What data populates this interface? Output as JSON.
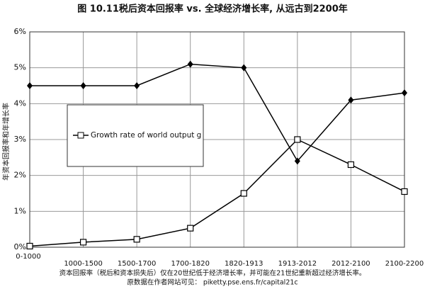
{
  "chart_data": {
    "type": "line",
    "title": "图 10.11税后资本回报率 vs. 全球经济增长率, 从远古到2200年",
    "y_label": "年资本回报率和年增长率",
    "categories": [
      "0-1000",
      "1000-1500",
      "1500-1700",
      "1700-1820",
      "1820-1913",
      "1913-2012",
      "2012-2100",
      "2100-2200"
    ],
    "series": [
      {
        "color": "#000000",
        "marker": "diamond",
        "values": [
          4.5,
          4.5,
          4.5,
          5.1,
          5.0,
          2.4,
          4.1,
          4.3
        ]
      },
      {
        "name": "Growth rate of world output g",
        "color": "#000000",
        "marker": "square",
        "values": [
          0.03,
          0.14,
          0.22,
          0.53,
          1.5,
          3.0,
          2.3,
          1.55
        ]
      }
    ],
    "ylim": [
      0,
      6
    ],
    "yticks": [
      {
        "value": 0,
        "label": "0%"
      },
      {
        "value": 1,
        "label": "1%"
      },
      {
        "value": 2,
        "label": "2%"
      },
      {
        "value": 3,
        "label": "3%"
      },
      {
        "value": 4,
        "label": "4%"
      },
      {
        "value": 5,
        "label": "5%"
      },
      {
        "value": 6,
        "label": "6%"
      }
    ],
    "grid": true,
    "notes": [
      "资本回报率（税后和资本损失后）仅在20世纪低于经济增长率，并可能在21世纪重新超过经济增长率。",
      "原数据在作者网站可见：    piketty.pse.ens.fr/capital21c"
    ]
  }
}
